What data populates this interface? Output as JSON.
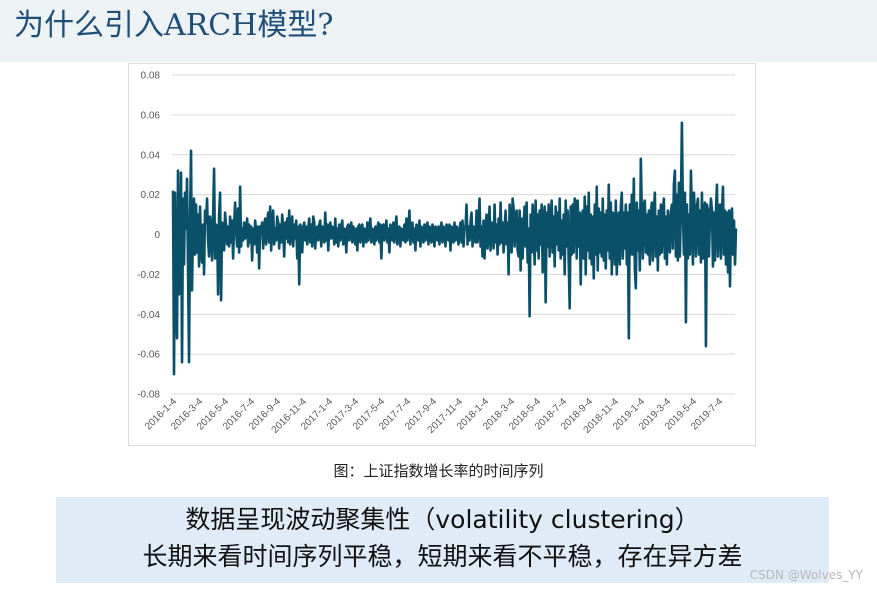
{
  "slide": {
    "title": "为什么引入ARCH模型?",
    "caption": "图：上证指数增长率的时间序列",
    "summary_line1": "数据呈现波动聚集性（volatility clustering）",
    "summary_line2": "长期来看时间序列平稳，短期来看不平稳，存在异方差",
    "watermark": "CSDN @Wolves_YY"
  },
  "colors": {
    "series": "#0b5069",
    "grid": "#d9d9d9",
    "tick_text": "#595959"
  },
  "chart_data": {
    "type": "line",
    "title": "",
    "xlabel": "",
    "ylabel": "",
    "ylim": [
      -0.08,
      0.08
    ],
    "yticks": [
      0.08,
      0.06,
      0.04,
      0.02,
      0,
      -0.02,
      -0.04,
      -0.06,
      -0.08
    ],
    "ytick_labels": [
      "0.08",
      "0.06",
      "0.04",
      "0.02",
      "0",
      "-0.02",
      "-0.04",
      "-0.06",
      "-0.08"
    ],
    "xtick_labels": [
      "2016-1-4",
      "2016-3-4",
      "2016-5-4",
      "2016-7-4",
      "2016-9-4",
      "2016-11-4",
      "2017-1-4",
      "2017-3-4",
      "2017-5-4",
      "2017-7-4",
      "2017-9-4",
      "2017-11-4",
      "2018-1-4",
      "2018-3-4",
      "2018-5-4",
      "2018-7-4",
      "2018-9-4",
      "2018-11-4",
      "2019-1-4",
      "2019-3-4",
      "2019-5-4",
      "2019-7-4"
    ],
    "grid": true,
    "series": [
      {
        "values": [
          0.022,
          -0.07,
          0.021,
          -0.034,
          -0.052,
          0.032,
          -0.03,
          -0.016,
          0.031,
          -0.064,
          0.018,
          -0.015,
          0.021,
          0.003,
          0.028,
          -0.017,
          -0.064,
          0.007,
          0.042,
          -0.028,
          0.006,
          0.018,
          -0.01,
          0.015,
          -0.009,
          0.01,
          -0.016,
          0.014,
          -0.008,
          -0.014,
          0.005,
          -0.02,
          0.012,
          0.006,
          0.018,
          -0.003,
          -0.011,
          0.009,
          0.004,
          -0.013,
          0.008,
          0.033,
          -0.012,
          0.005,
          0.004,
          -0.03,
          0.01,
          0.021,
          -0.033,
          0.006,
          0.003,
          -0.008,
          0.011,
          0.004,
          -0.005,
          0.004,
          -0.006,
          0.009,
          -0.004,
          0.007,
          -0.012,
          0.005,
          0.016,
          0.002,
          -0.006,
          0.013,
          -0.009,
          0.024,
          -0.006,
          0.003,
          -0.003,
          0.006,
          -0.002,
          0.002,
          0.008,
          -0.006,
          0.005,
          -0.004,
          0.004,
          -0.013,
          0.003,
          -0.005,
          0.007,
          0.002,
          -0.009,
          0.004,
          -0.017,
          0.004,
          0.003,
          0.006,
          -0.007,
          0.004,
          0.008,
          -0.005,
          0.006,
          0.011,
          -0.004,
          0.014,
          -0.008,
          0.006,
          0.012,
          -0.005,
          0.003,
          -0.003,
          0.009,
          0.006,
          -0.007,
          0.005,
          -0.004,
          0.01,
          0.003,
          -0.011,
          0.006,
          -0.002,
          0.008,
          -0.004,
          0.012,
          -0.005,
          0.003,
          0.009,
          -0.006,
          0.005,
          -0.002,
          0.007,
          -0.012,
          0.004,
          -0.025,
          0.005,
          0.003,
          -0.009,
          0.004,
          0.006,
          -0.003,
          0.004,
          -0.005,
          0.003,
          0.008,
          -0.004,
          0.005,
          -0.006,
          0.009,
          0.006,
          -0.007,
          0.003,
          0.004,
          -0.003,
          0.005,
          0.007,
          -0.006,
          0.004,
          0.002,
          -0.004,
          0.011,
          -0.003,
          0.005,
          -0.008,
          0.004,
          0.006,
          -0.002,
          0.004,
          0.003,
          -0.005,
          0.008,
          -0.004,
          0.003,
          -0.006,
          0.005,
          -0.003,
          0.004,
          0.007,
          -0.005,
          0.003,
          0.002,
          -0.009,
          0.004,
          0.005,
          -0.003,
          0.003,
          0.006,
          -0.004,
          0.004,
          0.002,
          -0.005,
          0.003,
          -0.008,
          0.004,
          0.005,
          -0.004,
          0.003,
          0.005,
          -0.006,
          0.003,
          0.002,
          -0.004,
          0.006,
          -0.003,
          0.004,
          0.008,
          -0.004,
          0.003,
          0.002,
          -0.005,
          0.004,
          -0.003,
          0.003,
          0.006,
          -0.004,
          0.005,
          -0.012,
          0.004,
          0.005,
          -0.003,
          0.003,
          0.007,
          -0.004,
          0.003,
          -0.009,
          0.005,
          0.004,
          -0.003,
          0.006,
          -0.004,
          0.003,
          0.009,
          -0.005,
          0.003,
          0.004,
          -0.006,
          0.003,
          0.002,
          -0.003,
          0.005,
          -0.004,
          0.008,
          -0.003,
          0.004,
          0.012,
          -0.005,
          0.003,
          0.006,
          -0.004,
          0.003,
          -0.008,
          0.005,
          0.004,
          -0.003,
          0.007,
          -0.006,
          0.004,
          0.002,
          -0.004,
          0.005,
          -0.003,
          0.004,
          0.006,
          -0.005,
          0.004,
          0.003,
          -0.004,
          0.005,
          0.002,
          -0.006,
          0.004,
          0.003,
          -0.003,
          0.004,
          -0.005,
          0.003,
          0.006,
          -0.004,
          0.004,
          0.003,
          -0.006,
          0.005,
          0.004,
          -0.003,
          0.005,
          -0.008,
          0.004,
          0.003,
          -0.004,
          0.006,
          -0.003,
          0.004,
          0.002,
          -0.005,
          0.003,
          0.006,
          -0.004,
          0.007,
          -0.006,
          0.004,
          0.003,
          0.015,
          -0.005,
          0.004,
          -0.003,
          0.006,
          0.011,
          -0.006,
          0.004,
          0.003,
          -0.004,
          0.012,
          -0.004,
          0.005,
          0.018,
          -0.006,
          0.004,
          -0.011,
          0.007,
          -0.012,
          0.004,
          0.01,
          -0.007,
          0.002,
          0.014,
          -0.008,
          0.006,
          0.004,
          -0.007,
          0.015,
          -0.004,
          0.005,
          -0.01,
          0.008,
          -0.005,
          0.016,
          -0.004,
          0.006,
          -0.009,
          0.003,
          0.012,
          -0.005,
          0.006,
          -0.02,
          0.015,
          0.005,
          -0.009,
          0.018,
          0.013,
          -0.006,
          0.009,
          0.012,
          -0.008,
          -0.011,
          0.012,
          -0.018,
          0.008,
          -0.012,
          0.006,
          0.014,
          -0.006,
          0.016,
          -0.014,
          0.003,
          -0.041,
          0.01,
          -0.009,
          0.015,
          0.004,
          -0.015,
          0.017,
          -0.008,
          0.01,
          -0.012,
          0.012,
          -0.005,
          0.015,
          -0.019,
          0.008,
          0.014,
          -0.034,
          0.011,
          -0.006,
          0.015,
          -0.011,
          0.005,
          0.017,
          -0.009,
          0.009,
          -0.016,
          0.014,
          -0.005,
          0.011,
          -0.008,
          0.018,
          -0.012,
          0.007,
          -0.01,
          0.01,
          -0.02,
          0.017,
          -0.006,
          0.012,
          -0.013,
          -0.037,
          0.014,
          -0.01,
          0.015,
          -0.009,
          0.018,
          0.016,
          -0.012,
          0.017,
          -0.006,
          0.011,
          -0.025,
          0.007,
          0.012,
          -0.012,
          0.019,
          -0.02,
          0.014,
          -0.008,
          0.021,
          -0.012,
          0.01,
          -0.015,
          0.009,
          -0.022,
          0.015,
          -0.01,
          0.024,
          -0.018,
          0.013,
          -0.009,
          0.011,
          -0.011,
          0.018,
          -0.013,
          0.01,
          -0.017,
          0.012,
          -0.008,
          0.025,
          -0.012,
          0.016,
          -0.02,
          0.011,
          0.009,
          -0.015,
          0.017,
          -0.02,
          0.005,
          0.011,
          -0.015,
          0.014,
          0.021,
          -0.012,
          0.011,
          -0.007,
          0.015,
          -0.015,
          0.011,
          -0.052,
          0.015,
          -0.01,
          0.02,
          -0.01,
          0.028,
          -0.017,
          -0.027,
          0.016,
          -0.008,
          0.012,
          -0.018,
          0.038,
          0.012,
          -0.012,
          0.015,
          0.017,
          -0.009,
          0.01,
          -0.01,
          0.012,
          -0.015,
          0.011,
          0.016,
          -0.013,
          0.011,
          0.021,
          -0.011,
          0.009,
          -0.018,
          0.012,
          -0.01,
          0.015,
          -0.009,
          0.011,
          0.018,
          -0.012,
          0.009,
          -0.015,
          0.012,
          0.003,
          -0.009,
          0.011,
          0.015,
          -0.007,
          0.025,
          0.032,
          -0.011,
          0.02,
          -0.013,
          0.026,
          -0.011,
          0.014,
          0.056,
          0.012,
          -0.01,
          0.021,
          -0.044,
          0.015,
          -0.012,
          0.01,
          -0.01,
          0.032,
          0.012,
          -0.015,
          0.021,
          0.01,
          -0.011,
          0.014,
          0.018,
          -0.01,
          0.012,
          -0.014,
          0.021,
          -0.012,
          0.011,
          0.016,
          -0.056,
          0.015,
          0.012,
          -0.011,
          0.009,
          0.018,
          0.012,
          -0.016,
          0.011,
          -0.013,
          0.012,
          0.025,
          -0.011,
          0.009,
          0.015,
          -0.012,
          0.011,
          0.024,
          -0.01,
          0.012,
          -0.015,
          0.011,
          -0.019,
          0.012,
          -0.026,
          0.01,
          0.013,
          -0.01,
          0.007,
          -0.015,
          0.003
        ]
      }
    ]
  }
}
